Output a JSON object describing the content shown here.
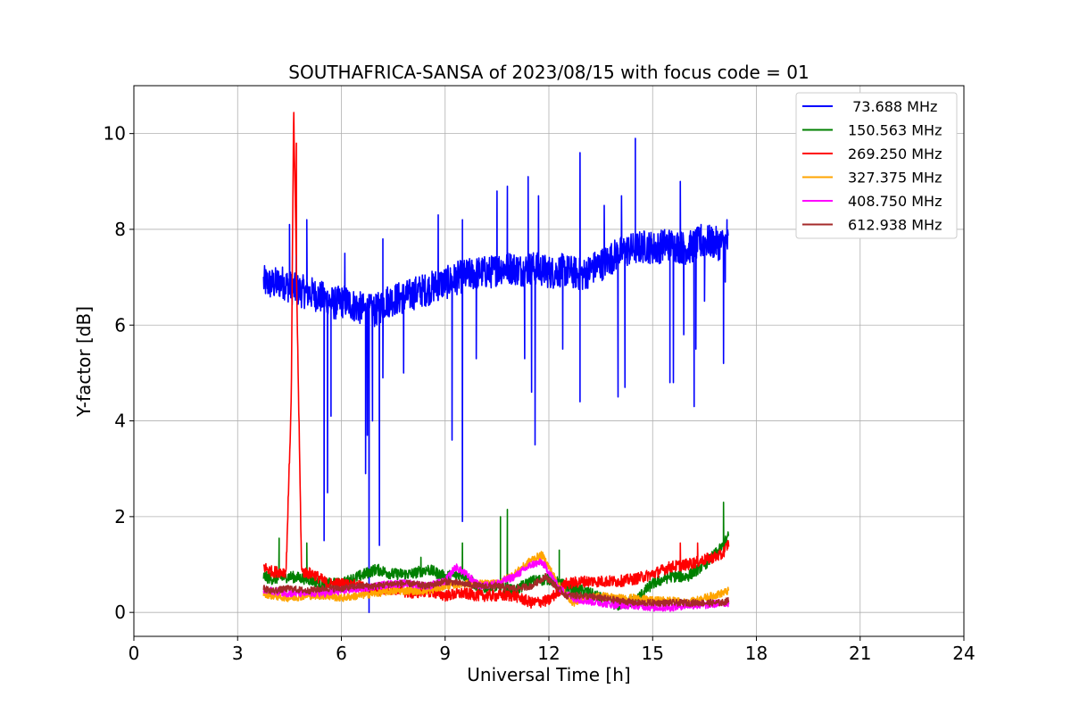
{
  "chart_data": {
    "type": "line",
    "title": "SOUTHAFRICA-SANSA of 2023/08/15 with focus code = 01",
    "xlabel": "Universal Time [h]",
    "ylabel": "Y-factor [dB]",
    "xlim": [
      0,
      24
    ],
    "ylim": [
      -0.5,
      11
    ],
    "x_ticks": [
      0,
      3,
      6,
      9,
      12,
      15,
      18,
      21,
      24
    ],
    "x_tick_labels": [
      "0",
      "3",
      "6",
      "9",
      "12",
      "15",
      "18",
      "21",
      "24"
    ],
    "y_ticks": [
      0,
      2,
      4,
      6,
      8,
      10
    ],
    "y_tick_labels": [
      "0",
      "2",
      "4",
      "6",
      "8",
      "10"
    ],
    "grid": true,
    "legend_position": "top-right",
    "series": [
      {
        "name": " 73.688 MHz",
        "color": "#0000ff",
        "x": [
          3.75,
          4.0,
          4.3,
          4.6,
          4.9,
          5.2,
          5.5,
          5.8,
          6.1,
          6.4,
          6.7,
          7.0,
          7.3,
          7.6,
          7.9,
          8.2,
          8.5,
          8.8,
          9.1,
          9.4,
          9.7,
          10.0,
          10.3,
          10.6,
          10.9,
          11.2,
          11.5,
          11.8,
          12.1,
          12.4,
          12.7,
          13.0,
          13.3,
          13.6,
          13.9,
          14.2,
          14.5,
          14.8,
          15.1,
          15.4,
          15.7,
          16.0,
          16.3,
          16.6,
          16.9,
          17.2
        ],
        "values": [
          6.9,
          6.85,
          6.9,
          6.75,
          6.7,
          6.65,
          6.55,
          6.45,
          6.5,
          6.4,
          6.3,
          6.3,
          6.5,
          6.55,
          6.6,
          6.7,
          6.75,
          6.85,
          6.9,
          7.0,
          7.05,
          7.1,
          7.1,
          7.2,
          7.2,
          7.15,
          7.2,
          7.15,
          7.1,
          7.15,
          7.1,
          7.05,
          7.2,
          7.3,
          7.45,
          7.55,
          7.6,
          7.65,
          7.6,
          7.7,
          7.65,
          7.6,
          7.7,
          7.75,
          7.7,
          7.7
        ],
        "spikes": [
          [
            4.5,
            8.1
          ],
          [
            4.7,
            8.5
          ],
          [
            5.0,
            8.2
          ],
          [
            5.5,
            1.5
          ],
          [
            5.6,
            2.5
          ],
          [
            5.7,
            4.1
          ],
          [
            6.1,
            7.5
          ],
          [
            6.7,
            2.9
          ],
          [
            6.75,
            3.7
          ],
          [
            6.8,
            0.0
          ],
          [
            6.9,
            4.0
          ],
          [
            7.1,
            1.4
          ],
          [
            7.2,
            4.9
          ],
          [
            7.2,
            7.8
          ],
          [
            7.8,
            5.0
          ],
          [
            8.8,
            8.3
          ],
          [
            9.2,
            3.6
          ],
          [
            9.5,
            1.9
          ],
          [
            9.5,
            8.2
          ],
          [
            9.9,
            5.3
          ],
          [
            10.5,
            8.8
          ],
          [
            10.8,
            8.9
          ],
          [
            11.3,
            5.3
          ],
          [
            11.4,
            9.1
          ],
          [
            11.5,
            4.6
          ],
          [
            11.6,
            3.5
          ],
          [
            11.7,
            8.7
          ],
          [
            12.4,
            5.5
          ],
          [
            12.9,
            9.6
          ],
          [
            12.9,
            4.4
          ],
          [
            13.6,
            8.5
          ],
          [
            14.0,
            4.5
          ],
          [
            14.1,
            8.7
          ],
          [
            14.2,
            4.7
          ],
          [
            14.5,
            9.9
          ],
          [
            15.5,
            4.8
          ],
          [
            15.6,
            4.8
          ],
          [
            15.8,
            9.0
          ],
          [
            15.9,
            5.8
          ],
          [
            16.2,
            4.3
          ],
          [
            16.25,
            5.5
          ],
          [
            16.4,
            8.1
          ],
          [
            16.5,
            6.5
          ],
          [
            17.05,
            5.2
          ],
          [
            17.15,
            8.2
          ],
          [
            17.1,
            6.9
          ]
        ]
      },
      {
        "name": "150.563 MHz",
        "color": "#008000",
        "x": [
          3.75,
          4.0,
          4.5,
          5.0,
          5.5,
          6.0,
          6.5,
          7.0,
          7.5,
          8.0,
          8.5,
          9.0,
          9.5,
          10.0,
          10.5,
          11.0,
          11.5,
          12.0,
          12.5,
          13.0,
          13.5,
          14.0,
          14.5,
          15.0,
          15.5,
          16.0,
          16.5,
          17.0,
          17.2
        ],
        "values": [
          0.75,
          0.7,
          0.75,
          0.7,
          0.6,
          0.6,
          0.75,
          0.9,
          0.8,
          0.8,
          0.9,
          0.75,
          0.8,
          0.5,
          0.55,
          0.45,
          0.65,
          0.7,
          0.55,
          0.45,
          0.3,
          0.15,
          0.25,
          0.6,
          0.75,
          0.75,
          1.0,
          1.35,
          1.6
        ],
        "spikes": [
          [
            4.2,
            1.55
          ],
          [
            5.0,
            1.45
          ],
          [
            8.3,
            1.15
          ],
          [
            9.5,
            1.45
          ],
          [
            10.6,
            2.0
          ],
          [
            10.8,
            2.15
          ],
          [
            12.3,
            1.3
          ],
          [
            17.05,
            2.3
          ]
        ]
      },
      {
        "name": "269.250 MHz",
        "color": "#ff0000",
        "x": [
          3.75,
          4.0,
          4.4,
          4.55,
          4.62,
          4.68,
          4.75,
          4.85,
          5.2,
          5.6,
          6.0,
          6.5,
          7.0,
          7.5,
          8.0,
          8.5,
          9.0,
          9.5,
          10.0,
          10.5,
          11.0,
          11.5,
          12.0,
          12.5,
          13.0,
          13.5,
          14.0,
          14.5,
          15.0,
          15.5,
          16.0,
          16.5,
          17.0,
          17.2
        ],
        "values": [
          0.95,
          0.85,
          0.85,
          4.4,
          10.5,
          8.0,
          5.0,
          0.85,
          0.8,
          0.6,
          0.6,
          0.55,
          0.45,
          0.5,
          0.4,
          0.45,
          0.35,
          0.4,
          0.35,
          0.35,
          0.35,
          0.2,
          0.25,
          0.6,
          0.65,
          0.65,
          0.65,
          0.7,
          0.8,
          0.95,
          1.0,
          1.1,
          1.2,
          1.45
        ],
        "spikes": [
          [
            4.7,
            9.8
          ],
          [
            15.8,
            1.45
          ],
          [
            16.3,
            1.45
          ]
        ]
      },
      {
        "name": "327.375 MHz",
        "color": "#ffa500",
        "x": [
          3.75,
          4.0,
          4.5,
          5.0,
          5.5,
          6.0,
          6.5,
          7.0,
          7.5,
          8.0,
          8.5,
          9.0,
          9.5,
          10.0,
          10.5,
          11.0,
          11.5,
          11.8,
          12.0,
          12.3,
          12.7,
          13.0,
          13.5,
          14.0,
          14.5,
          15.0,
          15.5,
          16.0,
          16.5,
          17.0,
          17.2
        ],
        "values": [
          0.4,
          0.35,
          0.3,
          0.35,
          0.35,
          0.3,
          0.35,
          0.4,
          0.45,
          0.45,
          0.45,
          0.55,
          0.6,
          0.6,
          0.6,
          0.8,
          1.1,
          1.2,
          0.95,
          0.55,
          0.2,
          0.3,
          0.35,
          0.3,
          0.3,
          0.25,
          0.25,
          0.2,
          0.3,
          0.4,
          0.45
        ],
        "spikes": []
      },
      {
        "name": "408.750 MHz",
        "color": "#ff00ff",
        "x": [
          3.75,
          4.0,
          4.5,
          5.0,
          5.5,
          6.0,
          6.5,
          7.0,
          7.5,
          8.0,
          8.5,
          9.0,
          9.3,
          9.6,
          10.0,
          10.5,
          11.0,
          11.5,
          11.8,
          12.0,
          12.3,
          12.7,
          13.0,
          13.5,
          14.0,
          14.5,
          15.0,
          15.5,
          16.0,
          16.5,
          17.0,
          17.2
        ],
        "values": [
          0.45,
          0.45,
          0.4,
          0.4,
          0.4,
          0.45,
          0.5,
          0.55,
          0.6,
          0.6,
          0.55,
          0.65,
          0.95,
          0.8,
          0.55,
          0.6,
          0.75,
          1.0,
          1.05,
          0.85,
          0.5,
          0.3,
          0.25,
          0.2,
          0.15,
          0.15,
          0.1,
          0.1,
          0.15,
          0.15,
          0.2,
          0.2
        ],
        "spikes": []
      },
      {
        "name": "612.938 MHz",
        "color": "#a52a2a",
        "x": [
          3.75,
          4.0,
          4.5,
          5.0,
          5.5,
          6.0,
          6.5,
          7.0,
          7.5,
          8.0,
          8.5,
          9.0,
          9.5,
          10.0,
          10.5,
          11.0,
          11.5,
          11.9,
          12.2,
          12.5,
          13.0,
          13.5,
          14.0,
          14.5,
          15.0,
          15.5,
          16.0,
          16.5,
          17.0,
          17.2
        ],
        "values": [
          0.5,
          0.45,
          0.5,
          0.45,
          0.5,
          0.5,
          0.55,
          0.55,
          0.6,
          0.6,
          0.55,
          0.65,
          0.6,
          0.55,
          0.55,
          0.5,
          0.55,
          0.75,
          0.55,
          0.35,
          0.35,
          0.3,
          0.25,
          0.2,
          0.2,
          0.2,
          0.2,
          0.2,
          0.2,
          0.25
        ],
        "spikes": []
      }
    ]
  }
}
